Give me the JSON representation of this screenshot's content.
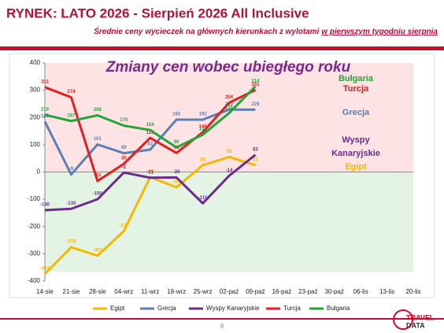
{
  "header": {
    "title": "RYNEK: LATO 2026 - Sierpień 2026 All Inclusive",
    "subtitle": "Średnie ceny wycieczek na głównych kierunkach z wylotami ",
    "subtitle_underlined": "w pierwszym tygodniu sierpnia"
  },
  "chart_data": {
    "type": "line",
    "title": "Zmiany cen wobec ubiegłego roku",
    "categories": [
      "14-sie",
      "21-sie",
      "28-sie",
      "04-wrz",
      "11-wrz",
      "18-wrz",
      "25-wrz",
      "02-paź",
      "09-paź",
      "16-paź",
      "23-paź",
      "30-paź",
      "06-lis",
      "13-lis",
      "20-lis"
    ],
    "series": [
      {
        "name": "Egipt",
        "color": "#f5b800",
        "values": [
          -374,
          -276,
          -307,
          -217,
          -19,
          -56,
          25,
          55,
          25,
          null,
          null,
          null,
          null,
          null,
          null
        ]
      },
      {
        "name": "Grecja",
        "color": "#5b7fb4",
        "values": [
          185,
          -9,
          101,
          69,
          82,
          192,
          192,
          229,
          229,
          null,
          null,
          null,
          null,
          null,
          null
        ]
      },
      {
        "name": "Wyspy Kanaryjskie",
        "color": "#6a2c91",
        "values": [
          -140,
          -135,
          -100,
          -2,
          -21,
          -20,
          -115,
          -14,
          63,
          null,
          null,
          null,
          null,
          null,
          null
        ]
      },
      {
        "name": "Turcja",
        "color": "#e41e1e",
        "values": [
          311,
          274,
          -33,
          30,
          125,
          70,
          146,
          254,
          301,
          null,
          null,
          null,
          null,
          null,
          null
        ]
      },
      {
        "name": "Bułgaria",
        "color": "#27a33c",
        "values": [
          210,
          187,
          208,
          170,
          154,
          90,
          137,
          216,
          314,
          null,
          null,
          null,
          null,
          null,
          null
        ]
      }
    ],
    "annotations": [
      {
        "text": "Bułgaria",
        "color": "#27a33c"
      },
      {
        "text": "Turcja",
        "color": "#e41e1e"
      },
      {
        "text": "Grecja",
        "color": "#5b7fb4"
      },
      {
        "text": "Wyspy",
        "color": "#6a2c91"
      },
      {
        "text": "Kanaryjskie",
        "color": "#6a2c91"
      },
      {
        "text": "Egipt",
        "color": "#f5b800"
      }
    ],
    "ylim": [
      -400,
      400
    ],
    "yticks": [
      -400,
      -300,
      -200,
      -100,
      0,
      100,
      200,
      300,
      400
    ],
    "grid": false,
    "legend": "bottom"
  },
  "footer": {
    "page": "9",
    "logo": [
      "TRAVEL",
      "DATA"
    ]
  }
}
